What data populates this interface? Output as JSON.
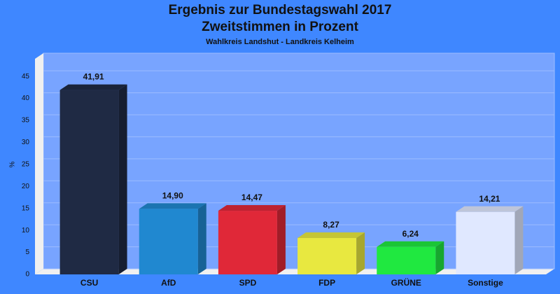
{
  "chart_data": {
    "type": "bar3d",
    "title": [
      "Ergebnis zur Bundestagswahl 2017",
      "Zweitstimmen in Prozent"
    ],
    "subtitle": "Wahlkreis Landshut - Landkreis Kelheim",
    "y_label": "%",
    "categories": [
      "CSU",
      "AfD",
      "SPD",
      "FDP",
      "GRÜNE",
      "Sonstige"
    ],
    "values": [
      41.91,
      14.9,
      14.47,
      8.27,
      6.24,
      14.21
    ],
    "value_labels": [
      "41,91",
      "14,90",
      "14,47",
      "8,27",
      "6,24",
      "14,21"
    ],
    "colors": [
      "#1f2a44",
      "#2088d0",
      "#e02838",
      "#e8e840",
      "#20e840",
      "#e0e8ff"
    ],
    "ylim": [
      0,
      49
    ],
    "yticks": [
      0,
      5,
      10,
      15,
      20,
      25,
      30,
      35,
      40,
      45
    ],
    "grid": true
  }
}
